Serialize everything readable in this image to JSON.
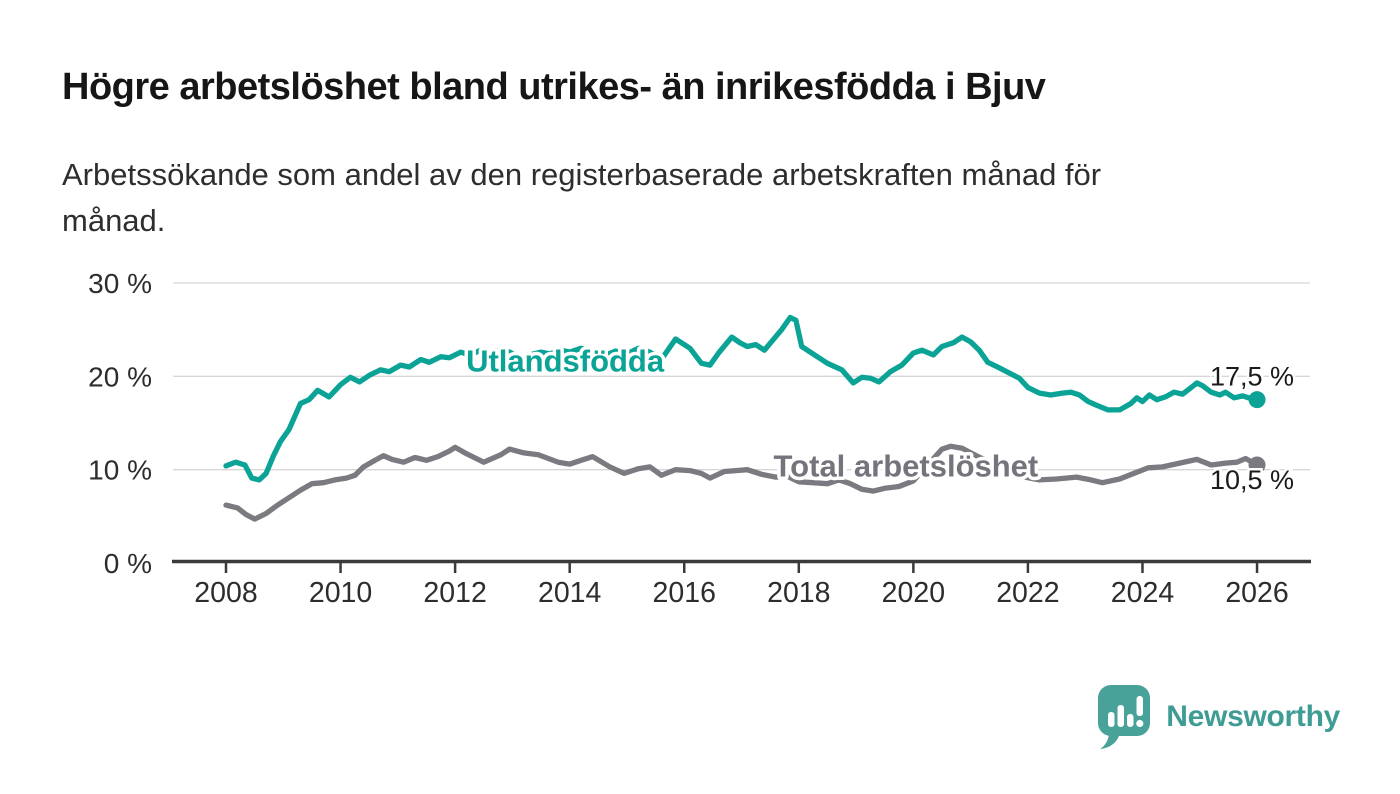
{
  "header": {
    "title": "Högre arbetslöshet bland utrikes- än inrikesfödda i Bjuv",
    "subtitle_lines": [
      "Arbetssökande som andel av den registerbaserade arbetskraften månad för",
      "månad."
    ]
  },
  "chart_data": {
    "type": "line",
    "title": "Högre arbetslöshet bland utrikes- än inrikesfödda i Bjuv",
    "subtitle": "Arbetssökande som andel av den registerbaserade arbetskraften månad för månad.",
    "unit": "%",
    "xlim": [
      2007.1,
      2026.95
    ],
    "ylim": [
      0,
      31
    ],
    "grid": "horizontal",
    "legend": "inline-labels",
    "grid_color": "#d7d7d7",
    "axis_color": "#3a3a3a",
    "tick_label_color": "#2d2d2d",
    "x_ticks": [
      2008,
      2010,
      2012,
      2014,
      2016,
      2018,
      2020,
      2022,
      2024,
      2026
    ],
    "y_ticks": [
      {
        "value": 0,
        "label": "0 %"
      },
      {
        "value": 10,
        "label": "10 %"
      },
      {
        "value": 20,
        "label": "20 %"
      },
      {
        "value": 30,
        "label": "30 %"
      }
    ],
    "series": [
      {
        "name": "Utlandsfödda",
        "color": "#0aa396",
        "end_label": "17,5 %",
        "end_value": 17.5,
        "end_label_offset": -14,
        "label_pos": [
          2013.92,
          21.7
        ],
        "points": [
          [
            2008.0,
            10.4
          ],
          [
            2008.17,
            10.8
          ],
          [
            2008.33,
            10.5
          ],
          [
            2008.45,
            9.1
          ],
          [
            2008.58,
            8.9
          ],
          [
            2008.7,
            9.6
          ],
          [
            2008.83,
            11.5
          ],
          [
            2008.95,
            13.0
          ],
          [
            2009.1,
            14.3
          ],
          [
            2009.3,
            17.1
          ],
          [
            2009.45,
            17.5
          ],
          [
            2009.6,
            18.5
          ],
          [
            2009.8,
            17.8
          ],
          [
            2010.0,
            19.1
          ],
          [
            2010.17,
            19.9
          ],
          [
            2010.33,
            19.4
          ],
          [
            2010.5,
            20.1
          ],
          [
            2010.7,
            20.7
          ],
          [
            2010.85,
            20.5
          ],
          [
            2011.05,
            21.2
          ],
          [
            2011.2,
            21.0
          ],
          [
            2011.4,
            21.8
          ],
          [
            2011.55,
            21.5
          ],
          [
            2011.75,
            22.1
          ],
          [
            2011.9,
            22.0
          ],
          [
            2012.1,
            22.6
          ],
          [
            2012.25,
            22.3
          ],
          [
            2012.45,
            22.8
          ],
          [
            2012.6,
            22.5
          ],
          [
            2012.8,
            22.8
          ],
          [
            2012.95,
            22.6
          ],
          [
            2013.15,
            21.9
          ],
          [
            2013.3,
            22.3
          ],
          [
            2013.5,
            22.6
          ],
          [
            2013.65,
            22.4
          ],
          [
            2013.85,
            22.8
          ],
          [
            2014.0,
            22.6
          ],
          [
            2014.2,
            23.0
          ],
          [
            2014.4,
            22.7
          ],
          [
            2014.6,
            22.2
          ],
          [
            2014.8,
            22.7
          ],
          [
            2015.0,
            22.4
          ],
          [
            2015.2,
            23.0
          ],
          [
            2015.4,
            22.6
          ],
          [
            2015.6,
            21.8
          ],
          [
            2015.85,
            24.0
          ],
          [
            2016.1,
            23.0
          ],
          [
            2016.3,
            21.4
          ],
          [
            2016.45,
            21.2
          ],
          [
            2016.6,
            22.5
          ],
          [
            2016.83,
            24.2
          ],
          [
            2016.97,
            23.6
          ],
          [
            2017.1,
            23.2
          ],
          [
            2017.25,
            23.4
          ],
          [
            2017.4,
            22.8
          ],
          [
            2017.55,
            23.9
          ],
          [
            2017.7,
            25.0
          ],
          [
            2017.85,
            26.3
          ],
          [
            2017.95,
            26.0
          ],
          [
            2018.05,
            23.2
          ],
          [
            2018.2,
            22.6
          ],
          [
            2018.35,
            22.0
          ],
          [
            2018.5,
            21.4
          ],
          [
            2018.75,
            20.7
          ],
          [
            2018.95,
            19.3
          ],
          [
            2019.1,
            19.9
          ],
          [
            2019.25,
            19.8
          ],
          [
            2019.4,
            19.4
          ],
          [
            2019.6,
            20.5
          ],
          [
            2019.8,
            21.2
          ],
          [
            2020.0,
            22.5
          ],
          [
            2020.15,
            22.8
          ],
          [
            2020.35,
            22.3
          ],
          [
            2020.5,
            23.2
          ],
          [
            2020.7,
            23.6
          ],
          [
            2020.85,
            24.2
          ],
          [
            2021.0,
            23.7
          ],
          [
            2021.15,
            22.8
          ],
          [
            2021.3,
            21.5
          ],
          [
            2021.5,
            20.9
          ],
          [
            2021.85,
            19.8
          ],
          [
            2022.0,
            18.8
          ],
          [
            2022.2,
            18.2
          ],
          [
            2022.4,
            18.0
          ],
          [
            2022.6,
            18.2
          ],
          [
            2022.75,
            18.3
          ],
          [
            2022.9,
            18.0
          ],
          [
            2023.05,
            17.3
          ],
          [
            2023.2,
            16.9
          ],
          [
            2023.4,
            16.4
          ],
          [
            2023.6,
            16.4
          ],
          [
            2023.8,
            17.1
          ],
          [
            2023.9,
            17.7
          ],
          [
            2024.0,
            17.3
          ],
          [
            2024.12,
            18.0
          ],
          [
            2024.25,
            17.5
          ],
          [
            2024.4,
            17.8
          ],
          [
            2024.55,
            18.3
          ],
          [
            2024.7,
            18.1
          ],
          [
            2024.85,
            18.8
          ],
          [
            2024.95,
            19.3
          ],
          [
            2025.05,
            19.0
          ],
          [
            2025.2,
            18.3
          ],
          [
            2025.35,
            18.0
          ],
          [
            2025.45,
            18.3
          ],
          [
            2025.6,
            17.7
          ],
          [
            2025.75,
            17.9
          ],
          [
            2025.9,
            17.6
          ],
          [
            2026.0,
            17.5
          ]
        ]
      },
      {
        "name": "Total arbetslöshet",
        "color": "#7b7a81",
        "label_color": "#75747c",
        "end_label": "10,5 %",
        "end_value": 10.5,
        "end_label_offset": 24,
        "label_pos": [
          2019.87,
          10.45
        ],
        "points": [
          [
            2008.0,
            6.2
          ],
          [
            2008.2,
            5.9
          ],
          [
            2008.35,
            5.2
          ],
          [
            2008.5,
            4.7
          ],
          [
            2008.7,
            5.3
          ],
          [
            2008.9,
            6.2
          ],
          [
            2009.1,
            7.0
          ],
          [
            2009.3,
            7.8
          ],
          [
            2009.5,
            8.5
          ],
          [
            2009.7,
            8.6
          ],
          [
            2009.9,
            8.9
          ],
          [
            2010.1,
            9.1
          ],
          [
            2010.25,
            9.4
          ],
          [
            2010.4,
            10.3
          ],
          [
            2010.6,
            11.0
          ],
          [
            2010.75,
            11.5
          ],
          [
            2010.9,
            11.1
          ],
          [
            2011.1,
            10.8
          ],
          [
            2011.3,
            11.3
          ],
          [
            2011.5,
            11.0
          ],
          [
            2011.7,
            11.4
          ],
          [
            2011.9,
            12.0
          ],
          [
            2012.0,
            12.4
          ],
          [
            2012.2,
            11.7
          ],
          [
            2012.5,
            10.8
          ],
          [
            2012.8,
            11.6
          ],
          [
            2012.95,
            12.2
          ],
          [
            2013.2,
            11.8
          ],
          [
            2013.45,
            11.6
          ],
          [
            2013.8,
            10.8
          ],
          [
            2014.0,
            10.6
          ],
          [
            2014.2,
            11.0
          ],
          [
            2014.4,
            11.4
          ],
          [
            2014.7,
            10.3
          ],
          [
            2014.95,
            9.6
          ],
          [
            2015.2,
            10.1
          ],
          [
            2015.4,
            10.3
          ],
          [
            2015.6,
            9.4
          ],
          [
            2015.85,
            10.0
          ],
          [
            2016.1,
            9.9
          ],
          [
            2016.3,
            9.6
          ],
          [
            2016.45,
            9.1
          ],
          [
            2016.7,
            9.8
          ],
          [
            2016.9,
            9.9
          ],
          [
            2017.1,
            10.0
          ],
          [
            2017.35,
            9.5
          ],
          [
            2017.6,
            9.2
          ],
          [
            2017.8,
            9.3
          ],
          [
            2018.0,
            8.7
          ],
          [
            2018.25,
            8.6
          ],
          [
            2018.5,
            8.5
          ],
          [
            2018.7,
            8.9
          ],
          [
            2018.9,
            8.5
          ],
          [
            2019.1,
            7.9
          ],
          [
            2019.3,
            7.7
          ],
          [
            2019.5,
            8.0
          ],
          [
            2019.75,
            8.2
          ],
          [
            2020.0,
            8.8
          ],
          [
            2020.25,
            10.5
          ],
          [
            2020.5,
            12.2
          ],
          [
            2020.65,
            12.5
          ],
          [
            2020.85,
            12.3
          ],
          [
            2021.1,
            11.5
          ],
          [
            2021.4,
            10.6
          ],
          [
            2021.7,
            9.8
          ],
          [
            2021.95,
            9.2
          ],
          [
            2022.2,
            8.9
          ],
          [
            2022.5,
            9.0
          ],
          [
            2022.85,
            9.2
          ],
          [
            2023.1,
            8.9
          ],
          [
            2023.3,
            8.6
          ],
          [
            2023.6,
            9.0
          ],
          [
            2023.85,
            9.6
          ],
          [
            2024.1,
            10.2
          ],
          [
            2024.35,
            10.3
          ],
          [
            2024.65,
            10.7
          ],
          [
            2024.95,
            11.1
          ],
          [
            2025.2,
            10.5
          ],
          [
            2025.45,
            10.7
          ],
          [
            2025.65,
            10.8
          ],
          [
            2025.8,
            11.2
          ],
          [
            2026.0,
            10.5
          ]
        ]
      }
    ]
  },
  "branding": {
    "logo_text": "Newsworthy",
    "logo_color": "#3f9c95"
  }
}
